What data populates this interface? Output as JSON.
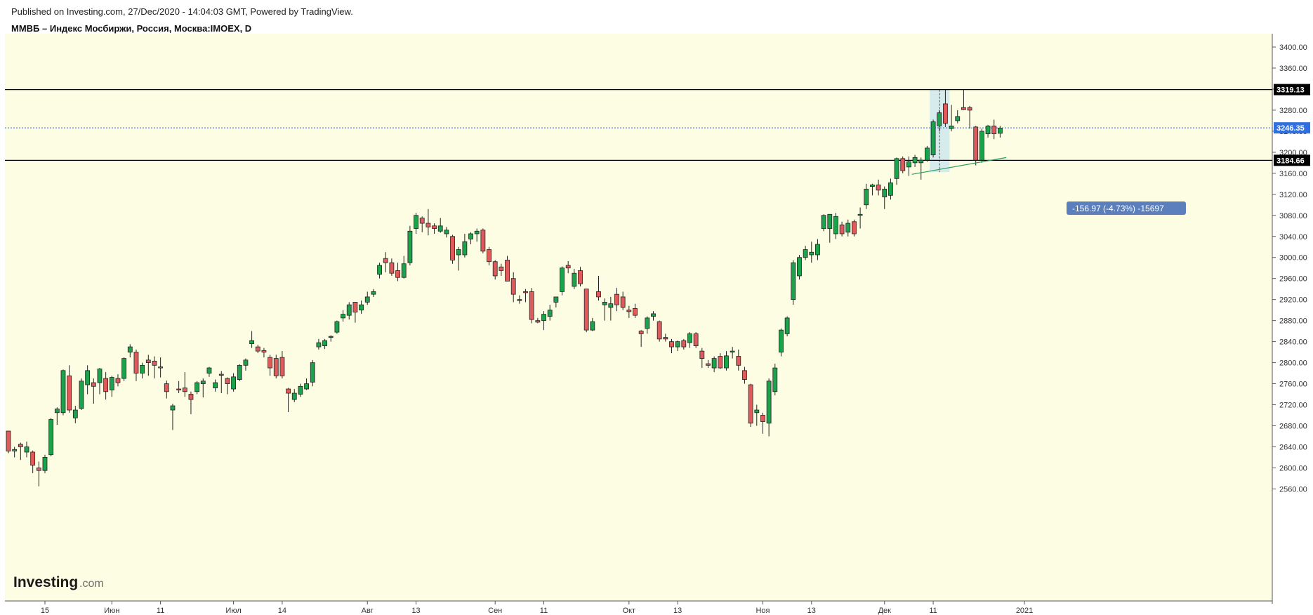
{
  "header": {
    "published": "Published on Investing.com, 27/Dec/2020 - 14:04:03 GMT, Powered by TradingView.",
    "instrument": "ММВБ – Индекс Мосбиржи, Россия, Москва:IMOEX, D"
  },
  "logo": {
    "brand": "Investing",
    "domain": ".com"
  },
  "colors": {
    "background": "#fdfde3",
    "up": "#1aa34a",
    "down": "#e0595b",
    "candle_border": "#222222",
    "level_line": "#000000",
    "current_price_line": "#2f5fcf",
    "trendline": "#2a9d57",
    "measure_box": "#c8e4ef",
    "measure_label": "#5b7fbd"
  },
  "price_labels": {
    "resistance": "3319.13",
    "current": "3246.35",
    "support": "3184.66"
  },
  "measure": {
    "label": "-156.97 (-4.73%) -15697"
  },
  "chart_data": {
    "type": "candlestick",
    "title": "ММВБ – Индекс Мосбиржи, Россия, Москва:IMOEX, D",
    "ylim": [
      2520,
      3410
    ],
    "y_ticks": [
      3400,
      3360,
      3320,
      3280,
      3240,
      3200,
      3160,
      3120,
      3080,
      3040,
      3000,
      2960,
      2920,
      2880,
      2840,
      2800,
      2760,
      2720,
      2680,
      2640,
      2600,
      2560
    ],
    "x_ticks": [
      {
        "label": "15",
        "index": 6
      },
      {
        "label": "Июн",
        "index": 17
      },
      {
        "label": "11",
        "index": 25
      },
      {
        "label": "Июл",
        "index": 37
      },
      {
        "label": "14",
        "index": 45
      },
      {
        "label": "Авг",
        "index": 59
      },
      {
        "label": "13",
        "index": 67
      },
      {
        "label": "Сен",
        "index": 80
      },
      {
        "label": "11",
        "index": 88
      },
      {
        "label": "Окт",
        "index": 102
      },
      {
        "label": "13",
        "index": 110
      },
      {
        "label": "Ноя",
        "index": 124
      },
      {
        "label": "13",
        "index": 132
      },
      {
        "label": "Дек",
        "index": 144
      },
      {
        "label": "11",
        "index": 152
      },
      {
        "label": "2021",
        "index": 167
      }
    ],
    "horizontal_levels": [
      3319.13,
      3184.66
    ],
    "current_price": 3246.35,
    "trendline": {
      "from": {
        "index": 148.5,
        "value": 3158
      },
      "to": {
        "index": 164,
        "value": 3190
      }
    },
    "measure": {
      "from_index": 152,
      "to_index": 154,
      "high": 3319.13,
      "low": 3162.16,
      "change": -156.97,
      "percent": -4.73,
      "bars_label": "-15697"
    },
    "candles": [
      {
        "o": 2670,
        "h": 2668,
        "l": 2628,
        "c": 2632
      },
      {
        "o": 2632,
        "h": 2640,
        "l": 2620,
        "c": 2635
      },
      {
        "o": 2645,
        "h": 2648,
        "l": 2615,
        "c": 2640
      },
      {
        "o": 2630,
        "h": 2650,
        "l": 2620,
        "c": 2640
      },
      {
        "o": 2630,
        "h": 2633,
        "l": 2590,
        "c": 2605
      },
      {
        "o": 2600,
        "h": 2612,
        "l": 2565,
        "c": 2595
      },
      {
        "o": 2595,
        "h": 2625,
        "l": 2590,
        "c": 2620
      },
      {
        "o": 2625,
        "h": 2695,
        "l": 2622,
        "c": 2692
      },
      {
        "o": 2705,
        "h": 2715,
        "l": 2682,
        "c": 2712
      },
      {
        "o": 2705,
        "h": 2787,
        "l": 2700,
        "c": 2785
      },
      {
        "o": 2775,
        "h": 2795,
        "l": 2705,
        "c": 2710
      },
      {
        "o": 2695,
        "h": 2718,
        "l": 2685,
        "c": 2710
      },
      {
        "o": 2713,
        "h": 2770,
        "l": 2710,
        "c": 2765
      },
      {
        "o": 2758,
        "h": 2795,
        "l": 2740,
        "c": 2785
      },
      {
        "o": 2762,
        "h": 2770,
        "l": 2722,
        "c": 2755
      },
      {
        "o": 2762,
        "h": 2790,
        "l": 2740,
        "c": 2788
      },
      {
        "o": 2770,
        "h": 2782,
        "l": 2730,
        "c": 2745
      },
      {
        "o": 2748,
        "h": 2775,
        "l": 2735,
        "c": 2772
      },
      {
        "o": 2770,
        "h": 2778,
        "l": 2755,
        "c": 2762
      },
      {
        "o": 2770,
        "h": 2810,
        "l": 2765,
        "c": 2808
      },
      {
        "o": 2820,
        "h": 2835,
        "l": 2810,
        "c": 2830
      },
      {
        "o": 2820,
        "h": 2825,
        "l": 2765,
        "c": 2780
      },
      {
        "o": 2780,
        "h": 2800,
        "l": 2770,
        "c": 2795
      },
      {
        "o": 2805,
        "h": 2815,
        "l": 2775,
        "c": 2800
      },
      {
        "o": 2803,
        "h": 2812,
        "l": 2770,
        "c": 2795
      },
      {
        "o": 2792,
        "h": 2810,
        "l": 2772,
        "c": 2790
      },
      {
        "o": 2760,
        "h": 2766,
        "l": 2732,
        "c": 2745
      },
      {
        "o": 2710,
        "h": 2722,
        "l": 2672,
        "c": 2718
      },
      {
        "o": 2750,
        "h": 2765,
        "l": 2742,
        "c": 2748
      },
      {
        "o": 2752,
        "h": 2782,
        "l": 2735,
        "c": 2745
      },
      {
        "o": 2740,
        "h": 2745,
        "l": 2702,
        "c": 2730
      },
      {
        "o": 2745,
        "h": 2765,
        "l": 2740,
        "c": 2762
      },
      {
        "o": 2760,
        "h": 2770,
        "l": 2734,
        "c": 2765
      },
      {
        "o": 2780,
        "h": 2792,
        "l": 2773,
        "c": 2790
      },
      {
        "o": 2752,
        "h": 2768,
        "l": 2745,
        "c": 2762
      },
      {
        "o": 2778,
        "h": 2784,
        "l": 2742,
        "c": 2776
      },
      {
        "o": 2770,
        "h": 2772,
        "l": 2740,
        "c": 2760
      },
      {
        "o": 2750,
        "h": 2780,
        "l": 2745,
        "c": 2773
      },
      {
        "o": 2768,
        "h": 2797,
        "l": 2765,
        "c": 2795
      },
      {
        "o": 2795,
        "h": 2808,
        "l": 2785,
        "c": 2805
      },
      {
        "o": 2836,
        "h": 2860,
        "l": 2828,
        "c": 2842
      },
      {
        "o": 2830,
        "h": 2834,
        "l": 2818,
        "c": 2822
      },
      {
        "o": 2823,
        "h": 2828,
        "l": 2810,
        "c": 2820
      },
      {
        "o": 2810,
        "h": 2815,
        "l": 2775,
        "c": 2790
      },
      {
        "o": 2808,
        "h": 2815,
        "l": 2770,
        "c": 2775
      },
      {
        "o": 2810,
        "h": 2822,
        "l": 2770,
        "c": 2775
      },
      {
        "o": 2750,
        "h": 2752,
        "l": 2706,
        "c": 2742
      },
      {
        "o": 2730,
        "h": 2750,
        "l": 2725,
        "c": 2742
      },
      {
        "o": 2740,
        "h": 2760,
        "l": 2735,
        "c": 2755
      },
      {
        "o": 2750,
        "h": 2770,
        "l": 2748,
        "c": 2760
      },
      {
        "o": 2763,
        "h": 2805,
        "l": 2755,
        "c": 2800
      },
      {
        "o": 2830,
        "h": 2845,
        "l": 2825,
        "c": 2838
      },
      {
        "o": 2832,
        "h": 2845,
        "l": 2826,
        "c": 2842
      },
      {
        "o": 2848,
        "h": 2852,
        "l": 2840,
        "c": 2850
      },
      {
        "o": 2858,
        "h": 2880,
        "l": 2855,
        "c": 2878
      },
      {
        "o": 2885,
        "h": 2900,
        "l": 2878,
        "c": 2892
      },
      {
        "o": 2890,
        "h": 2915,
        "l": 2882,
        "c": 2910
      },
      {
        "o": 2915,
        "h": 2915,
        "l": 2876,
        "c": 2896
      },
      {
        "o": 2900,
        "h": 2918,
        "l": 2893,
        "c": 2910
      },
      {
        "o": 2915,
        "h": 2935,
        "l": 2910,
        "c": 2925
      },
      {
        "o": 2930,
        "h": 2940,
        "l": 2925,
        "c": 2935
      },
      {
        "o": 2968,
        "h": 2990,
        "l": 2960,
        "c": 2985
      },
      {
        "o": 2998,
        "h": 3010,
        "l": 2972,
        "c": 2990
      },
      {
        "o": 2990,
        "h": 2998,
        "l": 2965,
        "c": 2970
      },
      {
        "o": 2975,
        "h": 2990,
        "l": 2955,
        "c": 2962
      },
      {
        "o": 2962,
        "h": 3003,
        "l": 2960,
        "c": 2988
      },
      {
        "o": 2990,
        "h": 3060,
        "l": 2985,
        "c": 3050
      },
      {
        "o": 3055,
        "h": 3085,
        "l": 3045,
        "c": 3080
      },
      {
        "o": 3075,
        "h": 3078,
        "l": 3048,
        "c": 3065
      },
      {
        "o": 3065,
        "h": 3092,
        "l": 3042,
        "c": 3058
      },
      {
        "o": 3060,
        "h": 3065,
        "l": 3045,
        "c": 3055
      },
      {
        "o": 3050,
        "h": 3075,
        "l": 3047,
        "c": 3060
      },
      {
        "o": 3045,
        "h": 3058,
        "l": 3038,
        "c": 3052
      },
      {
        "o": 3040,
        "h": 3043,
        "l": 2988,
        "c": 2995
      },
      {
        "o": 3005,
        "h": 3020,
        "l": 2975,
        "c": 3015
      },
      {
        "o": 3005,
        "h": 3045,
        "l": 3000,
        "c": 3030
      },
      {
        "o": 3035,
        "h": 3048,
        "l": 3025,
        "c": 3045
      },
      {
        "o": 3045,
        "h": 3055,
        "l": 3030,
        "c": 3050
      },
      {
        "o": 3052,
        "h": 3055,
        "l": 3008,
        "c": 3012
      },
      {
        "o": 3015,
        "h": 3020,
        "l": 2985,
        "c": 2992
      },
      {
        "o": 2992,
        "h": 2995,
        "l": 2958,
        "c": 2965
      },
      {
        "o": 2982,
        "h": 2988,
        "l": 2965,
        "c": 2975
      },
      {
        "o": 2995,
        "h": 3003,
        "l": 2960,
        "c": 2955
      },
      {
        "o": 2960,
        "h": 2972,
        "l": 2915,
        "c": 2930
      },
      {
        "o": 2920,
        "h": 2928,
        "l": 2912,
        "c": 2920
      },
      {
        "o": 2935,
        "h": 2940,
        "l": 2915,
        "c": 2933
      },
      {
        "o": 2935,
        "h": 2942,
        "l": 2875,
        "c": 2882
      },
      {
        "o": 2880,
        "h": 2885,
        "l": 2875,
        "c": 2877
      },
      {
        "o": 2880,
        "h": 2898,
        "l": 2862,
        "c": 2892
      },
      {
        "o": 2888,
        "h": 2910,
        "l": 2880,
        "c": 2900
      },
      {
        "o": 2915,
        "h": 2925,
        "l": 2905,
        "c": 2925
      },
      {
        "o": 2935,
        "h": 2983,
        "l": 2928,
        "c": 2980
      },
      {
        "o": 2985,
        "h": 2993,
        "l": 2970,
        "c": 2980
      },
      {
        "o": 2945,
        "h": 2978,
        "l": 2940,
        "c": 2970
      },
      {
        "o": 2975,
        "h": 2982,
        "l": 2945,
        "c": 2950
      },
      {
        "o": 2940,
        "h": 2940,
        "l": 2858,
        "c": 2862
      },
      {
        "o": 2862,
        "h": 2885,
        "l": 2860,
        "c": 2878
      },
      {
        "o": 2935,
        "h": 2965,
        "l": 2918,
        "c": 2925
      },
      {
        "o": 2910,
        "h": 2922,
        "l": 2880,
        "c": 2915
      },
      {
        "o": 2905,
        "h": 2925,
        "l": 2880,
        "c": 2912
      },
      {
        "o": 2930,
        "h": 2942,
        "l": 2898,
        "c": 2910
      },
      {
        "o": 2925,
        "h": 2935,
        "l": 2900,
        "c": 2905
      },
      {
        "o": 2900,
        "h": 2908,
        "l": 2885,
        "c": 2897
      },
      {
        "o": 2903,
        "h": 2912,
        "l": 2885,
        "c": 2890
      },
      {
        "o": 2860,
        "h": 2862,
        "l": 2830,
        "c": 2855
      },
      {
        "o": 2865,
        "h": 2888,
        "l": 2855,
        "c": 2885
      },
      {
        "o": 2888,
        "h": 2898,
        "l": 2880,
        "c": 2893
      },
      {
        "o": 2878,
        "h": 2880,
        "l": 2840,
        "c": 2845
      },
      {
        "o": 2848,
        "h": 2855,
        "l": 2840,
        "c": 2845
      },
      {
        "o": 2840,
        "h": 2845,
        "l": 2818,
        "c": 2830
      },
      {
        "o": 2830,
        "h": 2842,
        "l": 2822,
        "c": 2840
      },
      {
        "o": 2842,
        "h": 2845,
        "l": 2825,
        "c": 2830
      },
      {
        "o": 2838,
        "h": 2858,
        "l": 2828,
        "c": 2855
      },
      {
        "o": 2855,
        "h": 2858,
        "l": 2828,
        "c": 2832
      },
      {
        "o": 2822,
        "h": 2828,
        "l": 2790,
        "c": 2808
      },
      {
        "o": 2798,
        "h": 2805,
        "l": 2790,
        "c": 2795
      },
      {
        "o": 2790,
        "h": 2812,
        "l": 2782,
        "c": 2808
      },
      {
        "o": 2812,
        "h": 2818,
        "l": 2788,
        "c": 2790
      },
      {
        "o": 2790,
        "h": 2822,
        "l": 2785,
        "c": 2813
      },
      {
        "o": 2820,
        "h": 2830,
        "l": 2808,
        "c": 2822
      },
      {
        "o": 2812,
        "h": 2825,
        "l": 2785,
        "c": 2795
      },
      {
        "o": 2785,
        "h": 2792,
        "l": 2760,
        "c": 2768
      },
      {
        "o": 2758,
        "h": 2760,
        "l": 2678,
        "c": 2685
      },
      {
        "o": 2705,
        "h": 2720,
        "l": 2680,
        "c": 2710
      },
      {
        "o": 2700,
        "h": 2705,
        "l": 2665,
        "c": 2688
      },
      {
        "o": 2685,
        "h": 2770,
        "l": 2660,
        "c": 2765
      },
      {
        "o": 2745,
        "h": 2798,
        "l": 2738,
        "c": 2790
      },
      {
        "o": 2820,
        "h": 2865,
        "l": 2812,
        "c": 2862
      },
      {
        "o": 2855,
        "h": 2888,
        "l": 2850,
        "c": 2885
      },
      {
        "o": 2920,
        "h": 2995,
        "l": 2910,
        "c": 2990
      },
      {
        "o": 2965,
        "h": 3005,
        "l": 2958,
        "c": 3000
      },
      {
        "o": 3000,
        "h": 3022,
        "l": 2995,
        "c": 3015
      },
      {
        "o": 3005,
        "h": 3030,
        "l": 2990,
        "c": 3010
      },
      {
        "o": 3005,
        "h": 3035,
        "l": 2995,
        "c": 3025
      },
      {
        "o": 3055,
        "h": 3082,
        "l": 3050,
        "c": 3080
      },
      {
        "o": 3055,
        "h": 3082,
        "l": 3028,
        "c": 3082
      },
      {
        "o": 3045,
        "h": 3085,
        "l": 3035,
        "c": 3078
      },
      {
        "o": 3062,
        "h": 3068,
        "l": 3040,
        "c": 3045
      },
      {
        "o": 3048,
        "h": 3072,
        "l": 3040,
        "c": 3065
      },
      {
        "o": 3068,
        "h": 3072,
        "l": 3040,
        "c": 3045
      },
      {
        "o": 3080,
        "h": 3095,
        "l": 3055,
        "c": 3082
      },
      {
        "o": 3100,
        "h": 3140,
        "l": 3092,
        "c": 3130
      },
      {
        "o": 3135,
        "h": 3140,
        "l": 3118,
        "c": 3138
      },
      {
        "o": 3138,
        "h": 3148,
        "l": 3118,
        "c": 3128
      },
      {
        "o": 3115,
        "h": 3135,
        "l": 3092,
        "c": 3130
      },
      {
        "o": 3118,
        "h": 3150,
        "l": 3110,
        "c": 3142
      },
      {
        "o": 3150,
        "h": 3190,
        "l": 3138,
        "c": 3188
      },
      {
        "o": 3188,
        "h": 3192,
        "l": 3160,
        "c": 3165
      },
      {
        "o": 3172,
        "h": 3192,
        "l": 3155,
        "c": 3182
      },
      {
        "o": 3180,
        "h": 3195,
        "l": 3172,
        "c": 3190
      },
      {
        "o": 3180,
        "h": 3190,
        "l": 3148,
        "c": 3185
      },
      {
        "o": 3185,
        "h": 3212,
        "l": 3182,
        "c": 3208
      },
      {
        "o": 3195,
        "h": 3262,
        "l": 3190,
        "c": 3258
      },
      {
        "o": 3250,
        "h": 3280,
        "l": 3240,
        "c": 3275
      },
      {
        "o": 3292,
        "h": 3319,
        "l": 3248,
        "c": 3255
      },
      {
        "o": 3245,
        "h": 3290,
        "l": 3240,
        "c": 3250
      },
      {
        "o": 3260,
        "h": 3280,
        "l": 3255,
        "c": 3268
      },
      {
        "o": 3285,
        "h": 3319,
        "l": 3280,
        "c": 3281
      },
      {
        "o": 3285,
        "h": 3288,
        "l": 3245,
        "c": 3280
      },
      {
        "o": 3248,
        "h": 3250,
        "l": 3175,
        "c": 3185
      },
      {
        "o": 3185,
        "h": 3245,
        "l": 3180,
        "c": 3240
      },
      {
        "o": 3235,
        "h": 3252,
        "l": 3228,
        "c": 3250
      },
      {
        "o": 3250,
        "h": 3262,
        "l": 3225,
        "c": 3235
      },
      {
        "o": 3236,
        "h": 3250,
        "l": 3228,
        "c": 3246
      }
    ]
  }
}
